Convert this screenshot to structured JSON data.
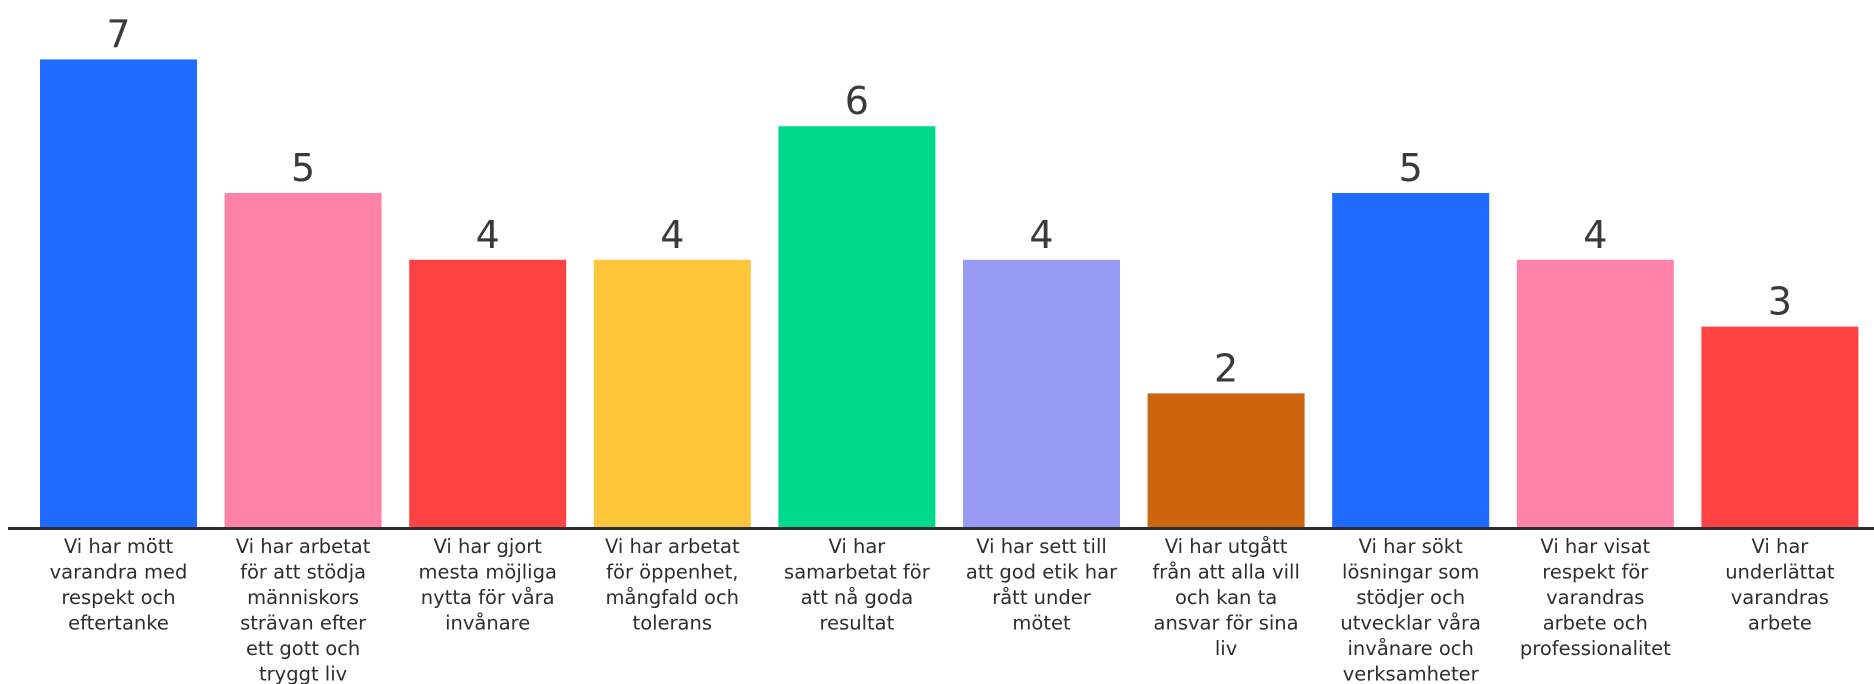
{
  "chart_data": {
    "type": "bar",
    "title": "",
    "xlabel": "",
    "ylabel": "",
    "ylim": [
      0,
      7
    ],
    "grid": false,
    "legend": "none",
    "categories": [
      [
        "Vi har mött",
        "varandra med",
        "respekt och",
        "eftertanke"
      ],
      [
        "Vi har arbetat",
        "för att stödja",
        "människors",
        "strävan efter",
        "ett gott och",
        "tryggt liv"
      ],
      [
        "Vi har gjort",
        "mesta möjliga",
        "nytta för våra",
        "invånare"
      ],
      [
        "Vi har arbetat",
        "för öppenhet,",
        "mångfald och",
        "tolerans"
      ],
      [
        "Vi har",
        "samarbetat för",
        "att nå goda",
        "resultat"
      ],
      [
        "Vi har sett till",
        "att god etik har",
        "rått under",
        "mötet"
      ],
      [
        "Vi har utgått",
        "från att alla vill",
        "och kan ta",
        "ansvar för sina",
        "liv"
      ],
      [
        "Vi har sökt",
        "lösningar som",
        "stödjer och",
        "utvecklar våra",
        "invånare och",
        "verksamheter"
      ],
      [
        "Vi har visat",
        "respekt för",
        "varandras",
        "arbete och",
        "professionalitet"
      ],
      [
        "Vi har",
        "underlättat",
        "varandras",
        "arbete"
      ]
    ],
    "values": [
      7,
      5,
      4,
      4,
      6,
      4,
      2,
      5,
      4,
      3
    ],
    "colors": [
      "#1f6bff",
      "#ff82aa",
      "#ff4242",
      "#ffc63b",
      "#00d98b",
      "#979bf4",
      "#cc650d",
      "#1f6bff",
      "#ff82aa",
      "#ff4242"
    ],
    "axis_color": "#2e2e2e"
  }
}
